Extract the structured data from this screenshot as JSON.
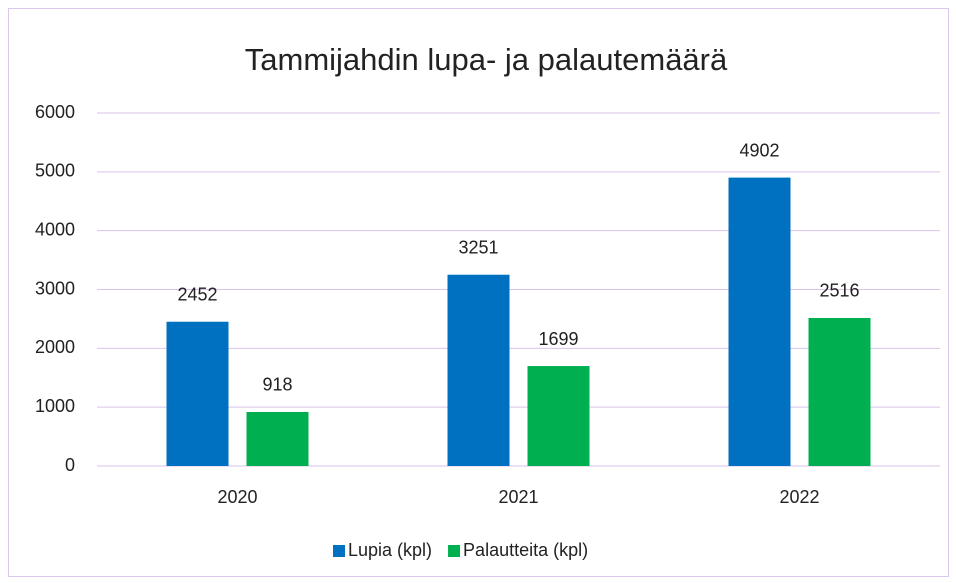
{
  "chart_data": {
    "type": "bar",
    "title": "Tammijahdin lupa- ja palautemäärä",
    "categories": [
      "2020",
      "2021",
      "2022"
    ],
    "series": [
      {
        "name": "Lupia (kpl)",
        "color": "#0070c0",
        "values": [
          2452,
          3251,
          4902
        ]
      },
      {
        "name": "Palautteita (kpl)",
        "color": "#00b050",
        "values": [
          918,
          1699,
          2516
        ]
      }
    ],
    "ylim": [
      0,
      6000
    ],
    "yticks": [
      0,
      1000,
      2000,
      3000,
      4000,
      5000,
      6000
    ],
    "grid": true,
    "legend": "bottom"
  }
}
